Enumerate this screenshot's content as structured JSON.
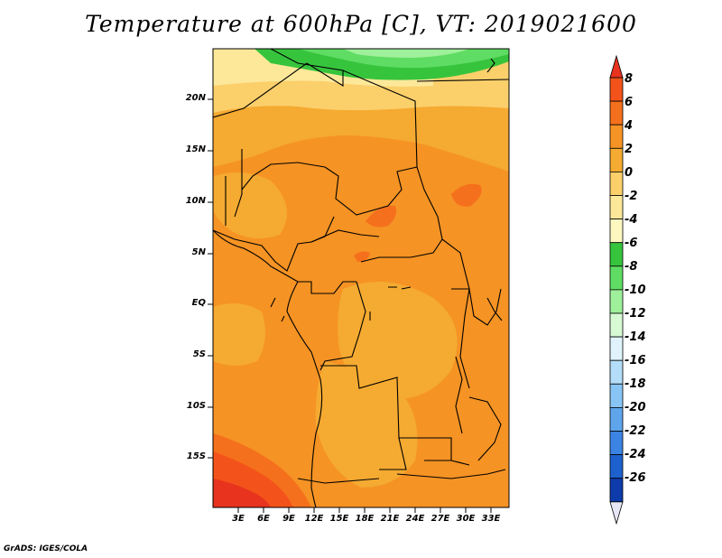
{
  "title": "Temperature at 600hPa [C], VT: 2019021600",
  "footer": "GrADS: IGES/COLA",
  "map": {
    "lat_labels": [
      "20N",
      "15N",
      "10N",
      "5N",
      "EQ",
      "5S",
      "10S",
      "15S"
    ],
    "lon_labels": [
      "3E",
      "6E",
      "9E",
      "12E",
      "15E",
      "18E",
      "21E",
      "24E",
      "27E",
      "30E",
      "33E"
    ]
  },
  "colorbar": {
    "labels": [
      "8",
      "6",
      "4",
      "2",
      "0",
      "-2",
      "-4",
      "-6",
      "-8",
      "-10",
      "-12",
      "-14",
      "-16",
      "-18",
      "-20",
      "-22",
      "-24",
      "-26"
    ],
    "colors": [
      "#e8331e",
      "#f3531a",
      "#f5701c",
      "#f59324",
      "#f5aa31",
      "#fbd06b",
      "#fde89a",
      "#fff7c0",
      "#37c43d",
      "#5fdc63",
      "#9ef09a",
      "#d7f9d4",
      "#e0f3fd",
      "#b3ddf8",
      "#89c5f4",
      "#5ea5ec",
      "#3b84e3",
      "#1d61cf",
      "#0e3bab",
      "#09137a"
    ]
  }
}
